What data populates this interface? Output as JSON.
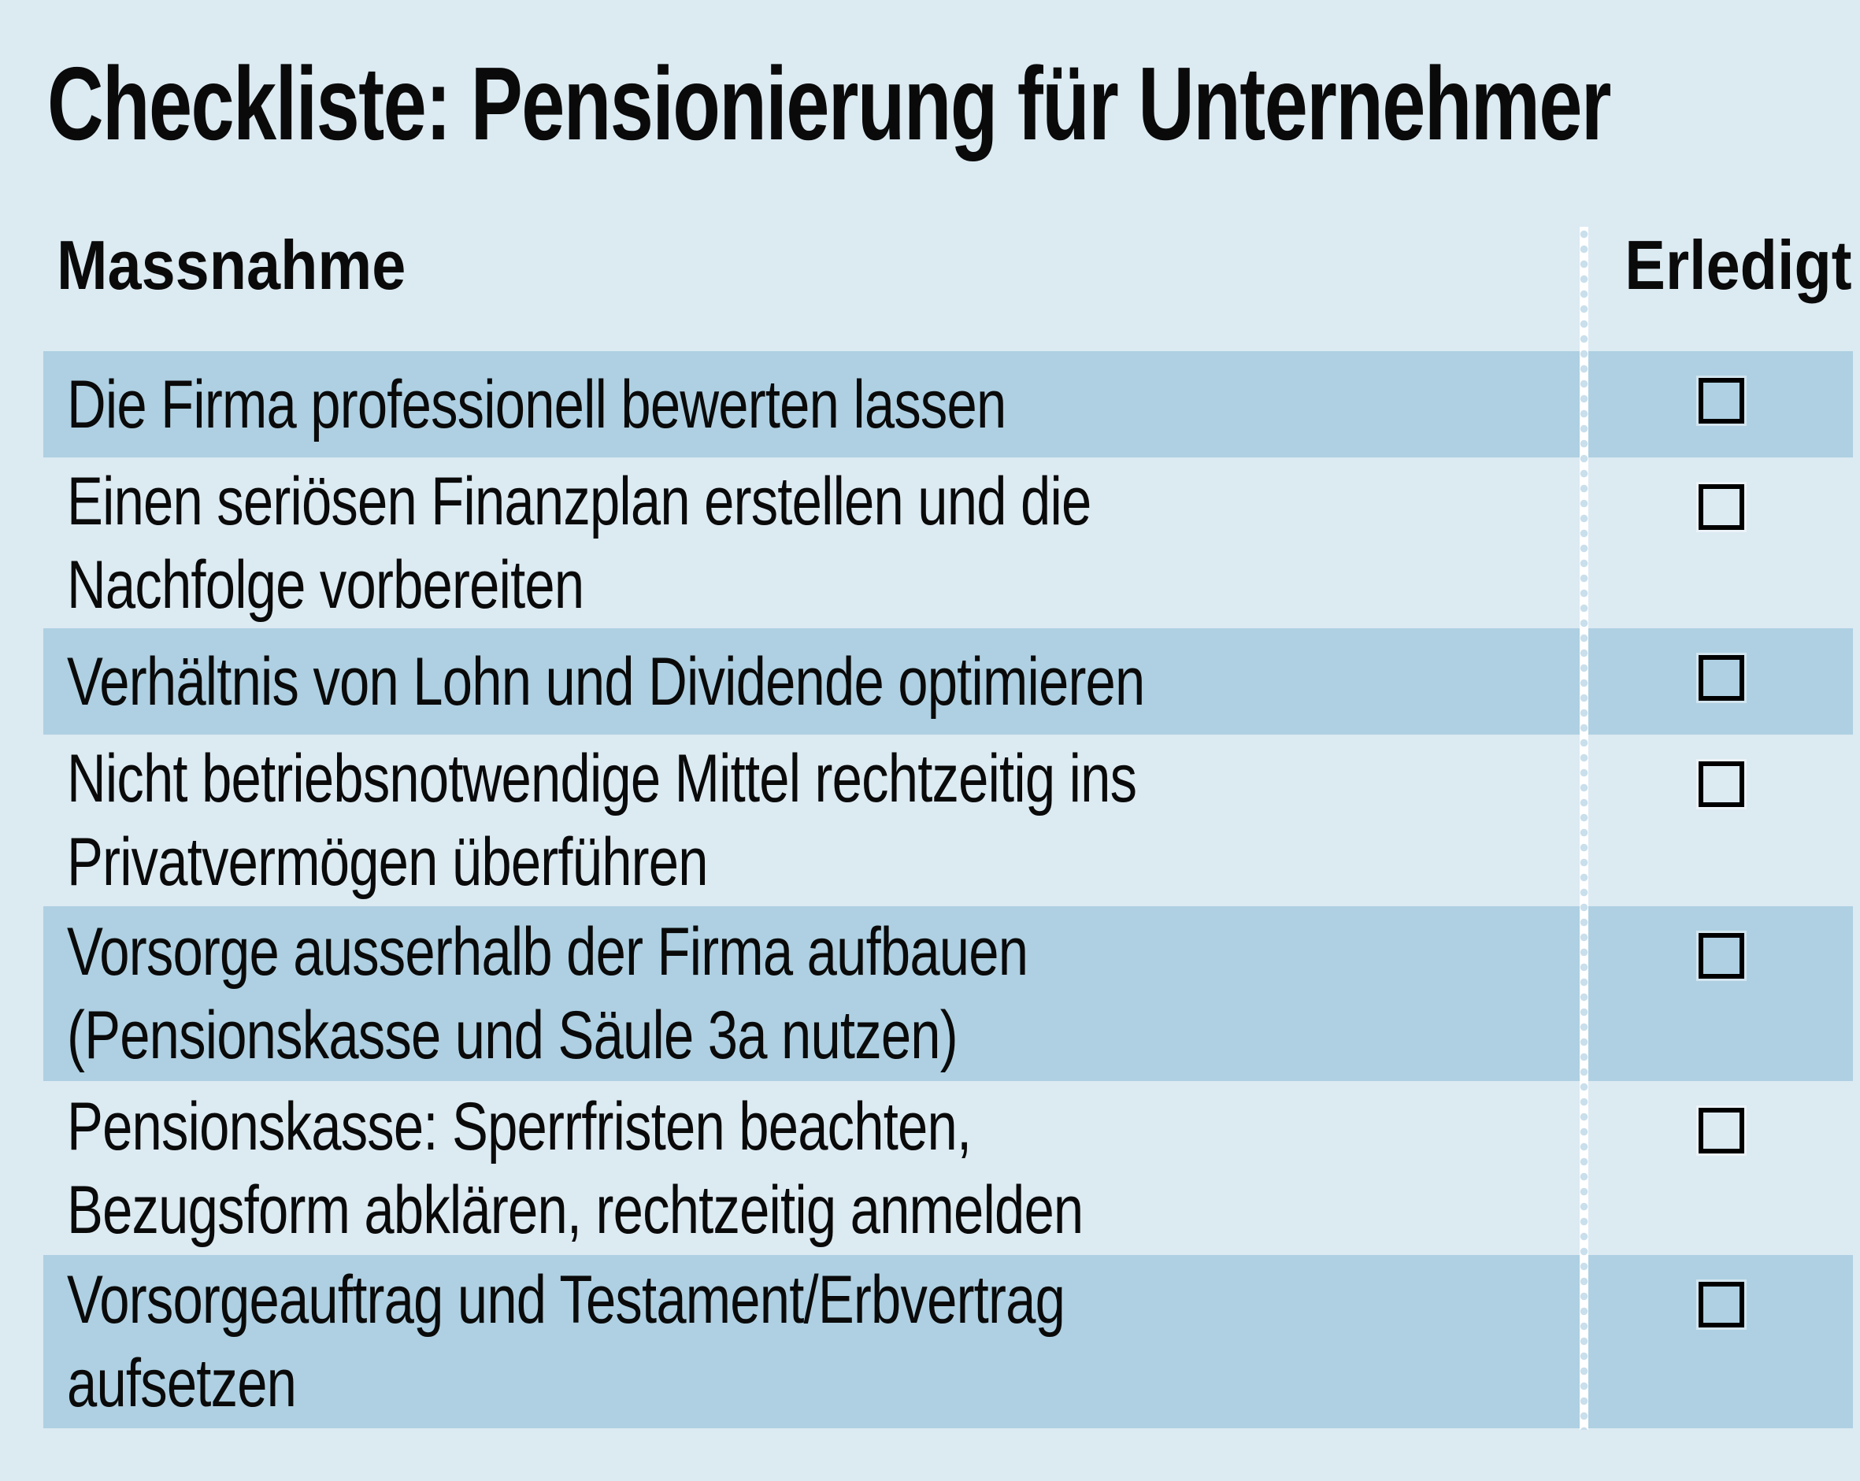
{
  "title": "Checkliste: Pensionierung für Unternehmer",
  "table": {
    "columns": {
      "measure": "Massnahme",
      "done": "Erledigt"
    },
    "rows": [
      {
        "text": "Die Firma professionell bewerten lassen",
        "checked": false
      },
      {
        "text": "Einen seriösen Finanzplan erstellen und die\nNachfolge vorbereiten",
        "checked": false
      },
      {
        "text": "Verhältnis von Lohn und Dividende optimieren",
        "checked": false
      },
      {
        "text": "Nicht betriebsnotwendige Mittel rechtzeitig ins\nPrivatvermögen überführen",
        "checked": false
      },
      {
        "text": "Vorsorge ausserhalb der Firma aufbauen\n(Pensionskasse und Säule 3a nutzen)",
        "checked": false
      },
      {
        "text": "Pensionskasse: Sperrfristen beachten,\nBezugsform abklären, rechtzeitig anmelden",
        "checked": false
      },
      {
        "text": "Vorsorgeauftrag und Testament/Erbvertrag\naufsetzen",
        "checked": false
      }
    ]
  },
  "colors": {
    "background": "#dceaf2",
    "row_highlight": "#aed0e2",
    "divider": "#ffffff",
    "divider_dot": "#c9dfec",
    "text": "#0a0a0a",
    "checkbox_border": "#000000"
  },
  "checkbox_checked_glyph": "✓"
}
